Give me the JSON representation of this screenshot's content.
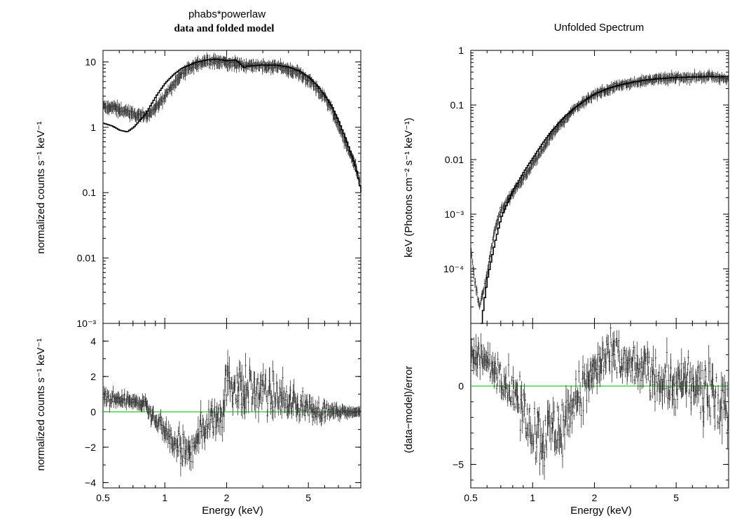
{
  "panels": {
    "left": {
      "title_line1": "phabs*powerlaw",
      "title_line2": "data and folded model",
      "top_ylabel": "normalized counts s⁻¹ keV⁻¹",
      "bottom_ylabel": "normalized counts s⁻¹ keV⁻¹",
      "xlabel": "Energy (keV)"
    },
    "right": {
      "title": "Unfolded Spectrum",
      "top_ylabel": "keV (Photons cm⁻² s⁻¹ keV⁻¹)",
      "bottom_ylabel": "(data−model)/error",
      "xlabel": "Energy (keV)"
    }
  },
  "chart_data": [
    {
      "type": "scatter",
      "title": "phabs*powerlaw",
      "subtitle": "data and folded model",
      "xlabel": "Energy (keV)",
      "ylabel": "normalized counts s⁻¹ keV⁻¹",
      "xscale": "log",
      "yscale": "log",
      "xlim": [
        0.5,
        9.0
      ],
      "ylim": [
        0.001,
        15
      ],
      "x_ticks": [
        {
          "value": 0.5,
          "label": "0.5"
        },
        {
          "value": 1,
          "label": "1"
        },
        {
          "value": 2,
          "label": "2"
        },
        {
          "value": 5,
          "label": "5"
        }
      ],
      "y_ticks": [
        {
          "value": 0.001,
          "label": "10⁻³"
        },
        {
          "value": 0.01,
          "label": "0.01"
        },
        {
          "value": 0.1,
          "label": "0.1"
        },
        {
          "value": 1,
          "label": "1"
        },
        {
          "value": 10,
          "label": "10"
        }
      ],
      "series": [
        {
          "role": "data",
          "x": [
            0.5,
            0.55,
            0.6,
            0.65,
            0.7,
            0.8,
            0.9,
            1.0,
            1.1,
            1.2,
            1.4,
            1.6,
            1.8,
            2.0,
            2.2,
            2.5,
            3.0,
            3.5,
            4.0,
            4.5,
            5.0,
            5.5,
            6.0,
            6.5,
            7.0,
            7.5,
            8.0,
            8.5,
            9.0
          ],
          "y": [
            2.0,
            2.1,
            1.9,
            1.8,
            1.6,
            1.5,
            2.0,
            3.0,
            4.5,
            6.5,
            9.5,
            10.5,
            10.3,
            10.0,
            9.5,
            9.0,
            8.8,
            8.5,
            7.8,
            6.8,
            5.5,
            4.0,
            2.8,
            1.9,
            1.1,
            0.65,
            0.4,
            0.25,
            0.12
          ]
        },
        {
          "role": "model",
          "x": [
            0.5,
            0.55,
            0.6,
            0.65,
            0.7,
            0.8,
            0.9,
            1.0,
            1.1,
            1.2,
            1.4,
            1.6,
            1.8,
            2.0,
            2.2,
            2.3,
            2.4,
            2.5,
            3.0,
            3.5,
            4.0,
            4.5,
            5.0,
            5.5,
            6.0,
            6.5,
            7.0,
            7.5,
            8.0,
            8.5,
            9.0
          ],
          "y": [
            1.15,
            1.05,
            0.9,
            0.85,
            1.0,
            1.6,
            3.0,
            4.8,
            6.5,
            8.0,
            9.8,
            10.8,
            11.0,
            10.4,
            10.7,
            9.5,
            8.2,
            8.6,
            9.0,
            8.9,
            8.3,
            7.2,
            5.8,
            4.3,
            3.0,
            2.0,
            1.2,
            0.7,
            0.4,
            0.22,
            0.1
          ]
        }
      ]
    },
    {
      "type": "scatter",
      "xlabel": "Energy (keV)",
      "ylabel": "normalized counts s⁻¹ keV⁻¹",
      "xscale": "log",
      "xlim": [
        0.5,
        9.0
      ],
      "ylim": [
        -4.3,
        5.0
      ],
      "x_ticks": [
        {
          "value": 0.5,
          "label": "0.5"
        },
        {
          "value": 1,
          "label": "1"
        },
        {
          "value": 2,
          "label": "2"
        },
        {
          "value": 5,
          "label": "5"
        }
      ],
      "y_ticks": [
        {
          "value": -4,
          "label": "−4"
        },
        {
          "value": -2,
          "label": "−2"
        },
        {
          "value": 0,
          "label": "0"
        },
        {
          "value": 2,
          "label": "2"
        },
        {
          "value": 4,
          "label": "4"
        }
      ],
      "reference_line": 0,
      "series": [
        {
          "role": "residuals",
          "x": [
            0.5,
            0.6,
            0.7,
            0.8,
            0.9,
            1.0,
            1.1,
            1.2,
            1.3,
            1.4,
            1.5,
            1.7,
            1.9,
            2.0,
            2.2,
            2.5,
            3.0,
            3.5,
            4.0,
            4.5,
            5.0,
            5.5,
            6.0,
            7.0,
            8.0,
            9.0
          ],
          "y": [
            0.8,
            0.7,
            0.6,
            0.4,
            -0.6,
            -1.0,
            -1.8,
            -2.2,
            -2.6,
            -1.6,
            -1.0,
            -0.4,
            0.3,
            1.6,
            1.5,
            1.3,
            1.0,
            0.9,
            0.6,
            0.4,
            0.2,
            0.1,
            0.0,
            0.0,
            0.0,
            0.0
          ],
          "spread": [
            0.4,
            0.3,
            0.3,
            0.3,
            0.4,
            0.6,
            0.8,
            1.0,
            1.0,
            1.0,
            1.0,
            1.1,
            1.3,
            1.4,
            1.4,
            1.3,
            1.2,
            1.1,
            1.0,
            0.8,
            0.6,
            0.5,
            0.4,
            0.25,
            0.1,
            0.05
          ]
        }
      ]
    },
    {
      "type": "scatter",
      "title": "Unfolded Spectrum",
      "xlabel": "Energy (keV)",
      "ylabel": "keV (Photons cm⁻² s⁻¹ keV⁻¹)",
      "xscale": "log",
      "yscale": "log",
      "xlim": [
        0.5,
        9.0
      ],
      "ylim": [
        1e-05,
        1
      ],
      "x_ticks": [
        {
          "value": 0.5,
          "label": "0.5"
        },
        {
          "value": 1,
          "label": "1"
        },
        {
          "value": 2,
          "label": "2"
        },
        {
          "value": 5,
          "label": "5"
        }
      ],
      "y_ticks": [
        {
          "value": 0.0001,
          "label": "10⁻⁴"
        },
        {
          "value": 0.001,
          "label": "10⁻³"
        },
        {
          "value": 0.01,
          "label": "0.01"
        },
        {
          "value": 0.1,
          "label": "0.1"
        },
        {
          "value": 1,
          "label": "1"
        }
      ],
      "series": [
        {
          "role": "data",
          "x": [
            0.5,
            0.52,
            0.55,
            0.6,
            0.65,
            0.7,
            0.8,
            0.9,
            1.0,
            1.1,
            1.2,
            1.4,
            1.6,
            1.8,
            2.0,
            2.3,
            2.5,
            3.0,
            3.5,
            4.0,
            5.0,
            6.0,
            7.0,
            8.0,
            9.0
          ],
          "y": [
            0.00025,
            7e-05,
            2e-05,
            8e-05,
            0.0005,
            0.0012,
            0.0025,
            0.0045,
            0.0085,
            0.014,
            0.025,
            0.05,
            0.085,
            0.12,
            0.16,
            0.19,
            0.22,
            0.26,
            0.28,
            0.3,
            0.32,
            0.33,
            0.34,
            0.32,
            0.3
          ]
        },
        {
          "role": "model",
          "x": [
            0.56,
            0.58,
            0.6,
            0.65,
            0.7,
            0.8,
            0.9,
            1.0,
            1.1,
            1.2,
            1.4,
            1.6,
            1.8,
            2.0,
            2.3,
            2.5,
            3.0,
            3.5,
            4.0,
            5.0,
            6.0,
            7.0,
            8.0,
            9.0
          ],
          "y": [
            1e-05,
            3e-05,
            7e-05,
            0.0003,
            0.0009,
            0.0028,
            0.006,
            0.011,
            0.019,
            0.03,
            0.058,
            0.09,
            0.125,
            0.16,
            0.2,
            0.22,
            0.26,
            0.285,
            0.3,
            0.32,
            0.325,
            0.33,
            0.33,
            0.33
          ]
        }
      ]
    },
    {
      "type": "scatter",
      "xlabel": "Energy (keV)",
      "ylabel": "(data−model)/error",
      "xscale": "log",
      "xlim": [
        0.5,
        9.0
      ],
      "ylim": [
        -6.5,
        4.0
      ],
      "x_ticks": [
        {
          "value": 0.5,
          "label": "0.5"
        },
        {
          "value": 1,
          "label": "1"
        },
        {
          "value": 2,
          "label": "2"
        },
        {
          "value": 5,
          "label": "5"
        }
      ],
      "y_ticks": [
        {
          "value": -5,
          "label": "−5"
        },
        {
          "value": 0,
          "label": "0"
        }
      ],
      "reference_line": 0,
      "series": [
        {
          "role": "residuals",
          "x": [
            0.5,
            0.6,
            0.7,
            0.8,
            0.9,
            1.0,
            1.1,
            1.2,
            1.4,
            1.6,
            1.8,
            2.0,
            2.3,
            2.6,
            3.0,
            3.5,
            4.0,
            4.5,
            5.0,
            6.0,
            7.0,
            8.0,
            9.0
          ],
          "y": [
            2.0,
            1.5,
            0.8,
            -0.5,
            -1.5,
            -2.5,
            -3.2,
            -3.0,
            -2.5,
            -1.0,
            0.0,
            1.0,
            1.8,
            1.6,
            1.2,
            1.0,
            0.6,
            0.3,
            0.1,
            0.0,
            -0.4,
            -1.0,
            -1.5
          ],
          "spread": [
            1.2,
            1.2,
            1.2,
            1.4,
            1.6,
            1.8,
            2.0,
            2.0,
            1.8,
            1.6,
            1.5,
            1.5,
            1.5,
            1.5,
            1.4,
            1.4,
            1.5,
            1.6,
            1.6,
            1.7,
            1.8,
            2.0,
            2.2
          ]
        }
      ]
    }
  ]
}
